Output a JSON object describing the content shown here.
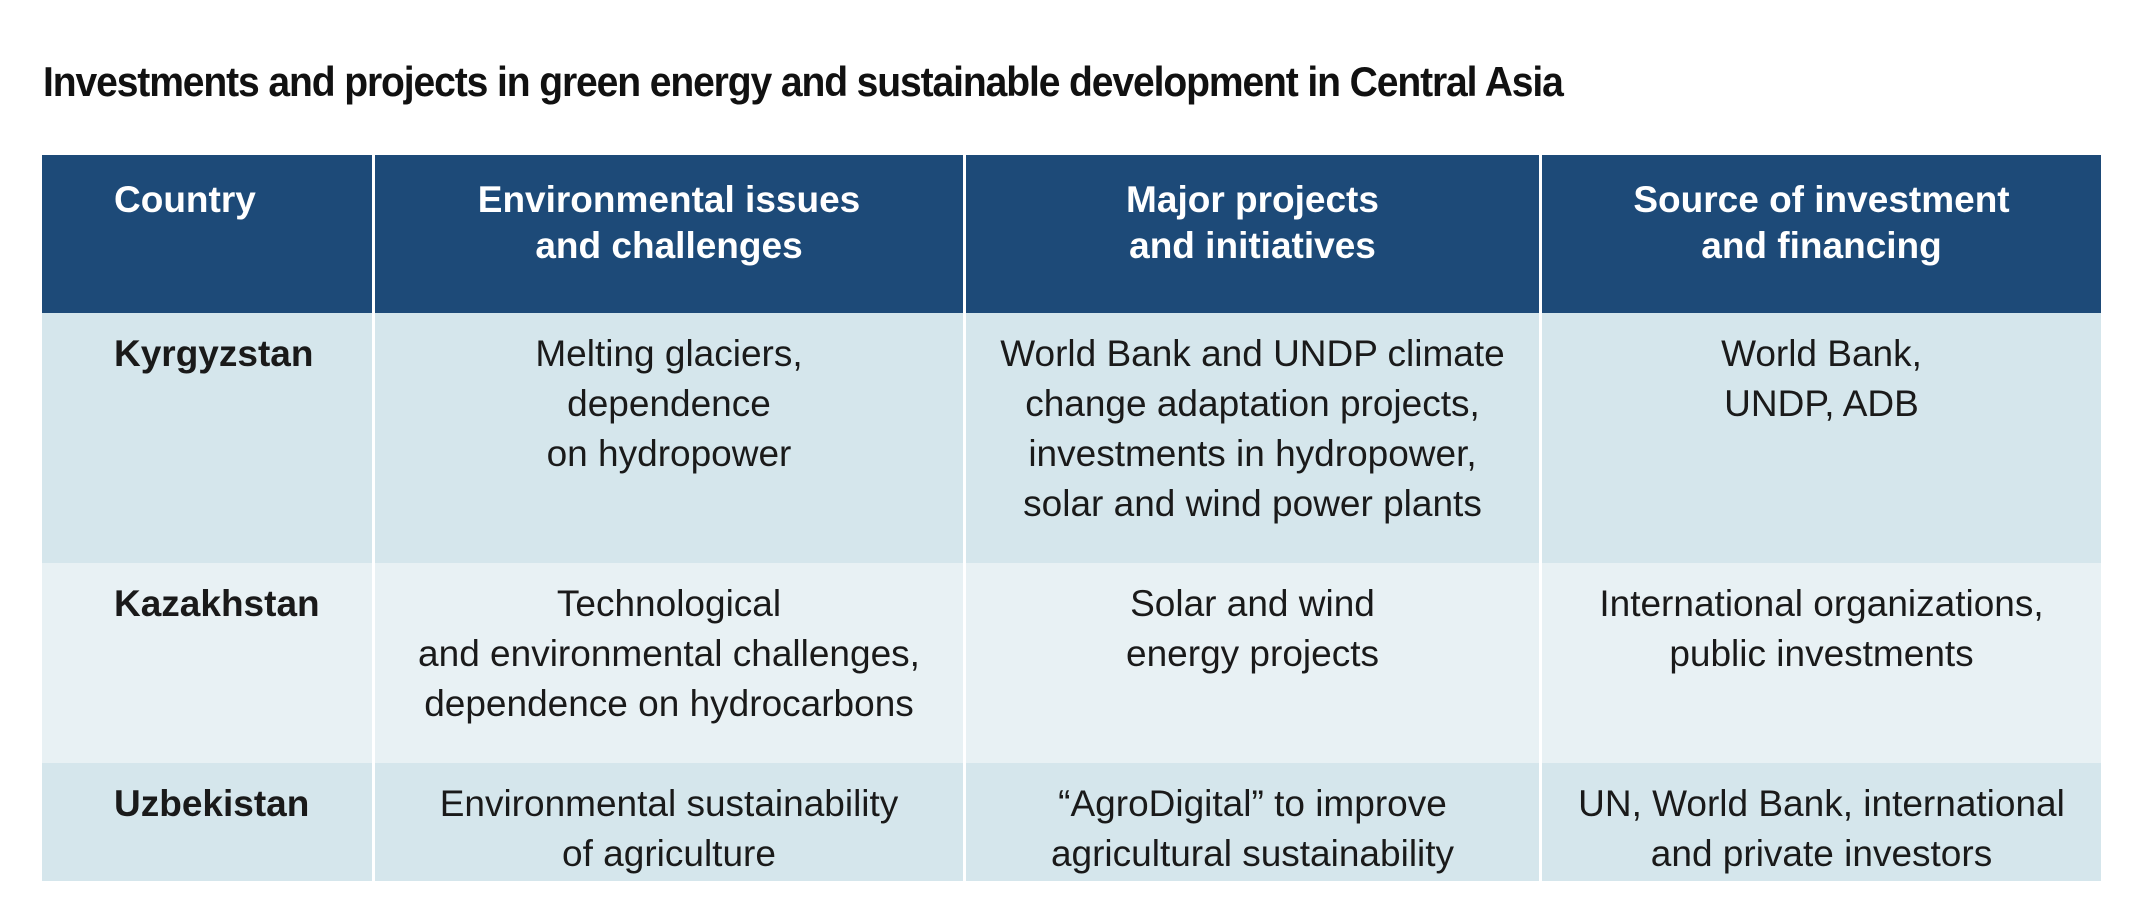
{
  "title": "Investments and projects in green energy and sustainable development in Central Asia",
  "table": {
    "headers": [
      "Country",
      "Environmental issues\nand challenges",
      "Major projects\nand initiatives",
      "Source of investment\nand financing"
    ],
    "rows": [
      {
        "country": "Kyrgyzstan",
        "issues": "Melting glaciers,\ndependence\non hydropower",
        "projects": "World Bank and UNDP climate\nchange adaptation projects,\ninvestments in hydropower,\nsolar and wind power plants",
        "financing": "World Bank,\nUNDP, ADB"
      },
      {
        "country": "Kazakhstan",
        "issues": "Technological\nand environmental challenges,\ndependence on hydrocarbons",
        "projects": "Solar and wind\nenergy projects",
        "financing": "International organizations,\npublic investments"
      },
      {
        "country": "Uzbekistan",
        "issues": "Environmental sustainability\nof agriculture",
        "projects": "“AgroDigital” to improve\nagricultural sustainability",
        "financing": "UN, World Bank, international\nand private investors"
      }
    ]
  },
  "colors": {
    "header_bg": "#1d4a78",
    "row_dark_bg": "#d5e6ec",
    "row_light_bg": "#e8f1f4"
  }
}
